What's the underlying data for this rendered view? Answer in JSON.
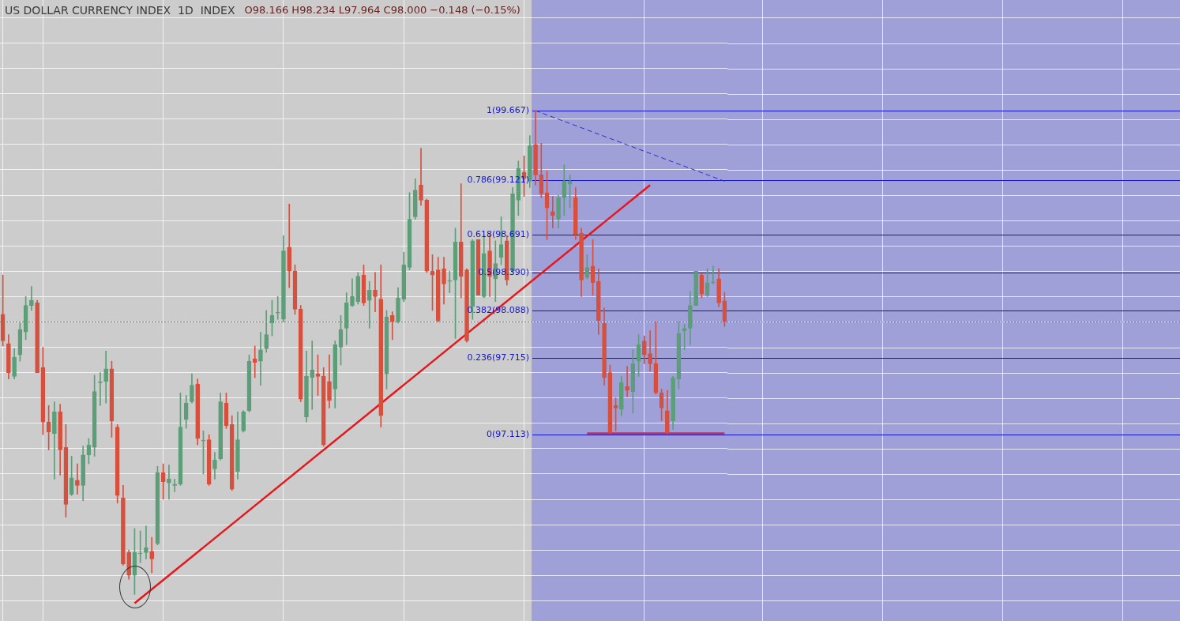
{
  "chart_data": {
    "type": "candlestick",
    "title": "US DOLLAR CURRENCY INDEX  1D  INDEX",
    "subtitle": "O98.166 H98.234 L97.964 C98.000 −0.148 (−0.15%)",
    "categories": [
      null,
      null,
      null,
      null,
      null,
      null,
      null,
      null,
      null,
      null,
      null,
      null,
      null,
      null,
      null,
      null,
      null,
      null,
      null,
      null,
      null,
      null,
      null,
      null,
      null,
      null,
      null,
      null,
      null,
      null,
      null,
      null,
      null,
      null,
      null,
      null,
      null,
      null,
      null,
      null,
      null,
      null,
      null,
      null,
      null,
      null,
      null,
      null,
      null,
      null,
      null,
      null,
      null,
      null,
      null,
      null,
      null,
      null,
      null,
      null,
      null,
      null,
      null,
      null,
      null,
      null,
      null,
      null,
      null,
      null,
      null,
      null,
      null,
      null,
      null,
      null,
      null,
      null,
      null,
      null,
      null,
      null,
      null,
      null,
      null,
      null,
      null,
      null,
      null,
      null,
      null,
      null,
      null,
      null,
      null,
      null,
      null,
      null,
      null,
      null,
      null,
      null,
      null,
      null,
      null,
      null,
      null,
      null,
      null,
      null,
      null,
      null,
      null,
      null,
      null,
      null,
      null,
      null,
      null,
      null,
      null,
      null,
      null,
      null,
      null,
      null,
      null
    ],
    "colors": [
      "#d6503d",
      "#d6503d",
      "#5b9e78",
      "#5b9e78",
      "#5b9e78",
      "#5b9e78",
      "#d6503d",
      "#d6503d",
      "#d6503d",
      "#5b9e78",
      "#d6503d",
      "#d6503d",
      "#5b9e78",
      "#d6503d",
      "#5b9e78",
      "#5b9e78",
      "#5b9e78",
      "#5b9e78",
      "#5b9e78",
      "#d6503d",
      "#d6503d",
      "#d6503d",
      "#d6503d",
      "#5b9e78",
      "#5b9e78",
      "#5b9e78",
      "#d6503d",
      "#5b9e78",
      "#d6503d",
      "#5b9e78",
      "#5b9e78",
      "#5b9e78",
      "#5b9e78",
      "#5b9e78",
      "#d6503d",
      "#5b9e78",
      "#d6503d",
      "#5b9e78",
      "#5b9e78",
      "#d6503d",
      "#d6503d",
      "#5b9e78",
      "#5b9e78",
      "#5b9e78",
      "#d6503d",
      "#5b9e78",
      "#5b9e78",
      "#5b9e78",
      "#5b9e78",
      "#5b9e78",
      "#d6503d",
      "#d6503d",
      "#d6503d",
      "#5b9e78",
      "#5b9e78",
      "#d6503d",
      "#d6503d",
      "#d6503d",
      "#5b9e78",
      "#5b9e78",
      "#5b9e78",
      "#5b9e78",
      "#5b9e78",
      "#d6503d",
      "#5b9e78",
      "#d6503d",
      "#d6503d",
      "#5b9e78",
      "#d6503d",
      "#5b9e78",
      "#5b9e78",
      "#5b9e78",
      "#5b9e78",
      "#d6503d",
      "#d6503d",
      "#d6503d",
      "#d6503d",
      "#d6503d",
      "#5b9e78",
      "#5b9e78",
      "#d6503d",
      "#d6503d",
      "#5b9e78",
      "#d6503d",
      "#5b9e78",
      "#d6503d",
      "#5b9e78",
      "#5b9e78",
      "#d6503d",
      "#5b9e78",
      "#5b9e78",
      "#d6503d",
      "#5b9e78",
      "#d6503d",
      "#d6503d",
      "#d6503d",
      "#d6503d",
      "#5b9e78",
      "#5b9e78",
      "#5b9e78",
      "#d6503d",
      "#d6503d",
      "#5b9e78",
      "#d6503d",
      "#d6503d",
      "#d6503d",
      "#d6503d",
      "#d6503d",
      "#5b9e78",
      "#d6503d",
      "#5b9e78",
      "#5b9e78",
      "#d6503d",
      "#d6503d",
      "#d6503d",
      "#d6503d",
      "#d6503d",
      "#5b9e78",
      "#5b9e78",
      "#5b9e78",
      "#5b9e78",
      "#5b9e78",
      "#d6503d",
      "#5b9e78",
      "#5b9e78",
      "#d6503d",
      "#d6503d"
    ],
    "ohlc": [
      [
        98.06,
        98.37,
        97.81,
        97.85
      ],
      [
        97.83,
        97.9,
        97.55,
        97.6
      ],
      [
        97.57,
        97.79,
        97.55,
        97.72
      ],
      [
        97.74,
        97.99,
        97.69,
        97.94
      ],
      [
        97.92,
        98.2,
        97.86,
        98.13
      ],
      [
        98.13,
        98.28,
        98.09,
        98.17
      ],
      [
        98.15,
        98.17,
        97.6,
        97.6
      ],
      [
        97.64,
        97.8,
        97.11,
        97.21
      ],
      [
        97.21,
        97.34,
        96.99,
        97.13
      ],
      [
        97.12,
        97.37,
        96.76,
        97.29
      ],
      [
        97.29,
        97.35,
        96.79,
        96.99
      ],
      [
        97.01,
        97.19,
        96.46,
        96.56
      ],
      [
        96.64,
        96.94,
        96.63,
        96.77
      ],
      [
        96.75,
        96.88,
        96.64,
        96.71
      ],
      [
        96.71,
        97.02,
        96.59,
        96.95
      ],
      [
        96.95,
        97.08,
        96.88,
        97.03
      ],
      [
        97.01,
        97.58,
        96.94,
        97.45
      ],
      [
        97.52,
        97.6,
        97.34,
        97.52
      ],
      [
        97.53,
        97.77,
        97.36,
        97.63
      ],
      [
        97.63,
        97.69,
        97.09,
        97.22
      ],
      [
        97.17,
        97.19,
        96.57,
        96.63
      ],
      [
        96.61,
        96.71,
        96.08,
        96.09
      ],
      [
        96.18,
        96.2,
        95.97,
        96.0
      ],
      [
        96.0,
        96.37,
        95.85,
        96.18
      ],
      [
        96.17,
        96.35,
        96.1,
        96.17
      ],
      [
        96.18,
        96.39,
        96.13,
        96.22
      ],
      [
        96.19,
        96.3,
        96.02,
        96.13
      ],
      [
        96.25,
        96.86,
        96.24,
        96.81
      ],
      [
        96.81,
        96.88,
        96.6,
        96.74
      ],
      [
        96.73,
        96.87,
        96.6,
        96.76
      ],
      [
        96.71,
        96.76,
        96.66,
        96.72
      ],
      [
        96.72,
        97.44,
        96.71,
        97.17
      ],
      [
        97.23,
        97.42,
        97.16,
        97.36
      ],
      [
        97.37,
        97.59,
        97.36,
        97.5
      ],
      [
        97.51,
        97.55,
        97.03,
        97.08
      ],
      [
        97.06,
        97.14,
        96.8,
        97.06
      ],
      [
        97.07,
        97.11,
        96.71,
        96.72
      ],
      [
        96.84,
        96.97,
        96.76,
        96.91
      ],
      [
        96.92,
        97.44,
        96.91,
        97.37
      ],
      [
        97.36,
        97.44,
        97.16,
        97.18
      ],
      [
        97.19,
        97.26,
        96.67,
        96.68
      ],
      [
        96.82,
        97.29,
        96.76,
        97.07
      ],
      [
        97.14,
        97.3,
        97.13,
        97.29
      ],
      [
        97.3,
        97.74,
        97.29,
        97.69
      ],
      [
        97.71,
        97.81,
        97.56,
        97.68
      ],
      [
        97.69,
        97.92,
        97.5,
        97.78
      ],
      [
        97.79,
        98.09,
        97.76,
        97.9
      ],
      [
        97.99,
        98.17,
        97.89,
        98.05
      ],
      [
        98.07,
        98.2,
        98.02,
        98.07
      ],
      [
        98.02,
        98.68,
        98.0,
        98.56
      ],
      [
        98.59,
        98.93,
        98.27,
        98.4
      ],
      [
        98.4,
        98.45,
        98.06,
        98.1
      ],
      [
        98.1,
        98.13,
        97.37,
        97.39
      ],
      [
        97.25,
        97.77,
        97.21,
        97.57
      ],
      [
        97.56,
        97.85,
        97.31,
        97.62
      ],
      [
        97.59,
        97.74,
        97.42,
        97.57
      ],
      [
        97.57,
        97.64,
        97.02,
        97.03
      ],
      [
        97.53,
        97.74,
        97.32,
        97.38
      ],
      [
        97.47,
        97.85,
        97.32,
        97.82
      ],
      [
        97.8,
        98.05,
        97.66,
        97.94
      ],
      [
        97.95,
        98.23,
        97.82,
        98.15
      ],
      [
        98.13,
        98.34,
        98.12,
        98.2
      ],
      [
        98.16,
        98.39,
        98.14,
        98.36
      ],
      [
        98.37,
        98.45,
        98.13,
        98.15
      ],
      [
        98.17,
        98.32,
        97.95,
        98.25
      ],
      [
        98.25,
        98.39,
        98.08,
        98.2
      ],
      [
        98.18,
        98.45,
        97.17,
        97.26
      ],
      [
        97.59,
        98.09,
        97.47,
        98.04
      ],
      [
        98.05,
        98.08,
        97.86,
        98.0
      ],
      [
        98.0,
        98.27,
        97.99,
        98.19
      ],
      [
        98.18,
        98.55,
        98.16,
        98.45
      ],
      [
        98.43,
        99.02,
        98.41,
        98.81
      ],
      [
        98.83,
        99.13,
        98.81,
        99.04
      ],
      [
        99.08,
        99.37,
        98.92,
        98.96
      ],
      [
        98.96,
        98.97,
        98.39,
        98.4
      ],
      [
        98.4,
        98.53,
        98.09,
        98.37
      ],
      [
        98.41,
        98.51,
        98.0,
        98.01
      ],
      [
        98.42,
        98.51,
        98.14,
        98.3
      ],
      [
        98.32,
        98.4,
        98.23,
        98.32
      ],
      [
        98.33,
        98.74,
        97.87,
        98.63
      ],
      [
        98.63,
        99.09,
        98.19,
        98.36
      ],
      [
        98.41,
        98.42,
        97.84,
        97.85
      ],
      [
        98.12,
        98.65,
        98.02,
        98.64
      ],
      [
        98.65,
        98.65,
        98.21,
        98.21
      ],
      [
        98.2,
        98.68,
        98.19,
        98.54
      ],
      [
        98.56,
        98.69,
        98.2,
        98.36
      ],
      [
        98.34,
        98.64,
        98.16,
        98.46
      ],
      [
        98.51,
        98.83,
        98.45,
        98.61
      ],
      [
        98.64,
        98.68,
        98.29,
        98.33
      ],
      [
        98.4,
        99.06,
        98.39,
        99.01
      ],
      [
        98.96,
        99.27,
        98.84,
        99.21
      ],
      [
        99.18,
        99.31,
        98.99,
        99.13
      ],
      [
        99.11,
        99.47,
        99.06,
        99.39
      ],
      [
        99.4,
        99.667,
        99.08,
        99.16
      ],
      [
        99.16,
        99.41,
        98.98,
        99.01
      ],
      [
        99.02,
        99.19,
        98.65,
        98.9
      ],
      [
        98.87,
        98.99,
        98.74,
        98.84
      ],
      [
        98.81,
        99.0,
        98.74,
        98.98
      ],
      [
        98.98,
        99.24,
        98.84,
        99.11
      ],
      [
        99.09,
        99.16,
        98.9,
        99.11
      ],
      [
        98.98,
        99.06,
        98.65,
        98.69
      ],
      [
        98.7,
        98.74,
        98.2,
        98.33
      ],
      [
        98.35,
        98.53,
        98.34,
        98.43
      ],
      [
        98.44,
        98.65,
        98.21,
        98.31
      ],
      [
        98.32,
        98.42,
        97.9,
        98.01
      ],
      [
        97.99,
        98.11,
        97.5,
        97.56
      ],
      [
        97.6,
        97.66,
        97.12,
        97.13
      ],
      [
        97.34,
        97.4,
        97.14,
        97.32
      ],
      [
        97.31,
        97.57,
        97.26,
        97.52
      ],
      [
        97.49,
        97.65,
        97.41,
        97.46
      ],
      [
        97.45,
        97.78,
        97.28,
        97.67
      ],
      [
        97.69,
        97.9,
        97.57,
        97.82
      ],
      [
        97.85,
        97.89,
        97.67,
        97.74
      ],
      [
        97.75,
        97.93,
        97.61,
        97.67
      ],
      [
        97.67,
        98.0,
        97.43,
        97.44
      ],
      [
        97.44,
        97.47,
        97.22,
        97.32
      ],
      [
        97.3,
        97.46,
        97.113,
        97.13
      ],
      [
        97.22,
        97.57,
        97.15,
        97.56
      ],
      [
        97.55,
        98.0,
        97.47,
        97.91
      ],
      [
        97.93,
        97.98,
        97.78,
        97.95
      ],
      [
        97.95,
        98.24,
        97.82,
        98.13
      ],
      [
        98.13,
        98.4,
        98.13,
        98.4
      ],
      [
        98.37,
        98.38,
        98.19,
        98.22
      ],
      [
        98.21,
        98.42,
        98.2,
        98.31
      ],
      [
        98.31,
        98.44,
        98.3,
        98.31
      ],
      [
        98.34,
        98.42,
        98.12,
        98.15
      ],
      [
        98.166,
        98.234,
        97.964,
        98.0
      ]
    ],
    "series": [
      {
        "type": "line",
        "color": "#e8161b",
        "line_style": "solid",
        "values": [
          null,
          null,
          null,
          null,
          null,
          null,
          null,
          null,
          null,
          null,
          null,
          null,
          null,
          null,
          null,
          null,
          null,
          null,
          null,
          null,
          null,
          null,
          null,
          95.78,
          null,
          null,
          null,
          null,
          null,
          null,
          null,
          null,
          null,
          null,
          null,
          null,
          null,
          null,
          null,
          null,
          null,
          null,
          null,
          null,
          null,
          null,
          null,
          null,
          null,
          null,
          null,
          null,
          null,
          null,
          null,
          null,
          null,
          null,
          null,
          null,
          null,
          null,
          null,
          null,
          null,
          null,
          null,
          null,
          null,
          null,
          null,
          null,
          null,
          null,
          null,
          null,
          null,
          null,
          null,
          null,
          null,
          null,
          null,
          null,
          null,
          null,
          null,
          null,
          null,
          null,
          null,
          null,
          null,
          null,
          null,
          null,
          null,
          null,
          null,
          null,
          null,
          null,
          null,
          null,
          null,
          null,
          null,
          null,
          null,
          null,
          null,
          null,
          null,
          99.08,
          null,
          null,
          null,
          null,
          null,
          null,
          null,
          null,
          null,
          null,
          null,
          null,
          null
        ]
      },
      {
        "type": "line",
        "color": "#c8285a",
        "line_style": "solid",
        "values": [
          null,
          null,
          null,
          null,
          null,
          null,
          null,
          null,
          null,
          null,
          null,
          null,
          null,
          null,
          null,
          null,
          null,
          null,
          null,
          null,
          null,
          null,
          null,
          null,
          null,
          null,
          null,
          null,
          null,
          null,
          null,
          null,
          null,
          null,
          null,
          null,
          null,
          null,
          null,
          null,
          null,
          null,
          null,
          null,
          null,
          null,
          null,
          null,
          null,
          null,
          null,
          null,
          null,
          null,
          null,
          null,
          null,
          null,
          null,
          null,
          null,
          null,
          null,
          null,
          null,
          null,
          null,
          null,
          null,
          null,
          null,
          null,
          null,
          null,
          null,
          null,
          null,
          null,
          null,
          null,
          null,
          null,
          null,
          null,
          null,
          null,
          null,
          null,
          null,
          null,
          null,
          null,
          null,
          null,
          null,
          null,
          null,
          null,
          null,
          null,
          null,
          null,
          97.12,
          null,
          null,
          null,
          null,
          null,
          null,
          null,
          null,
          null,
          null,
          null,
          null,
          null,
          null,
          null,
          null,
          null,
          null,
          null,
          null,
          null,
          null,
          null,
          97.12
        ]
      },
      {
        "type": "line",
        "color": "#2a2ad0",
        "line_style": "dashed",
        "values": [
          null,
          null,
          null,
          null,
          null,
          null,
          null,
          null,
          null,
          null,
          null,
          null,
          null,
          null,
          null,
          null,
          null,
          null,
          null,
          null,
          null,
          null,
          null,
          null,
          null,
          null,
          null,
          null,
          null,
          null,
          null,
          null,
          null,
          null,
          null,
          null,
          null,
          null,
          null,
          null,
          null,
          null,
          null,
          null,
          null,
          null,
          null,
          null,
          null,
          null,
          null,
          null,
          null,
          null,
          null,
          null,
          null,
          null,
          null,
          null,
          null,
          null,
          null,
          null,
          null,
          null,
          null,
          null,
          null,
          null,
          null,
          null,
          null,
          null,
          null,
          null,
          null,
          null,
          null,
          null,
          null,
          null,
          null,
          null,
          null,
          null,
          null,
          null,
          null,
          null,
          null,
          null,
          null,
          99.667,
          null,
          null,
          null,
          null,
          null,
          null,
          null,
          null,
          null,
          null,
          null,
          null,
          null,
          null,
          null,
          null,
          null,
          null,
          null,
          null,
          null,
          null,
          null,
          null,
          null,
          null,
          null,
          null,
          null,
          null,
          null,
          null,
          99.11
        ]
      }
    ],
    "ref_lines": [
      {
        "axis": "y",
        "value": 98.0,
        "color": "#e05050",
        "line_style": "dotted"
      }
    ],
    "annotations": [
      "1",
      "0.786",
      "0.618",
      "0.5",
      "0.382",
      "0.236",
      "0"
    ],
    "ylim": [
      95.64,
      100.54
    ],
    "yticks": [
      {
        "value": 95.8,
        "label": null
      },
      {
        "value": 96.0,
        "label": null
      },
      {
        "value": 96.2,
        "label": null
      },
      {
        "value": 96.4,
        "label": null
      },
      {
        "value": 96.6,
        "label": null
      },
      {
        "value": 96.8,
        "label": null
      },
      {
        "value": 97.0,
        "label": null
      },
      {
        "value": 97.113,
        "label": "(97.113)"
      },
      {
        "value": 97.2,
        "label": null
      },
      {
        "value": 97.4,
        "label": null
      },
      {
        "value": 97.6,
        "label": null
      },
      {
        "value": 97.715,
        "label": "(97.715)"
      },
      {
        "value": 97.8,
        "label": null
      },
      {
        "value": 98.0,
        "label": null
      },
      {
        "value": 98.088,
        "label": "(98.088)"
      },
      {
        "value": 98.2,
        "label": null
      },
      {
        "value": 98.39,
        "label": "(98.390)"
      },
      {
        "value": 98.4,
        "label": null
      },
      {
        "value": 98.6,
        "label": null
      },
      {
        "value": 98.691,
        "label": "(98.691)"
      },
      {
        "value": 98.8,
        "label": null
      },
      {
        "value": 99.0,
        "label": null
      },
      {
        "value": 99.121,
        "label": "(99.121)"
      },
      {
        "value": 99.2,
        "label": null
      },
      {
        "value": 99.4,
        "label": null
      },
      {
        "value": 99.6,
        "label": null
      },
      {
        "value": 99.667,
        "label": "(99.667)"
      },
      {
        "value": 99.8,
        "label": null
      },
      {
        "value": 100.0,
        "label": null
      },
      {
        "value": 100.2,
        "label": null
      },
      {
        "value": 100.4,
        "label": null
      }
    ],
    "tick_labels": "y",
    "grid": true,
    "legend": false
  }
}
